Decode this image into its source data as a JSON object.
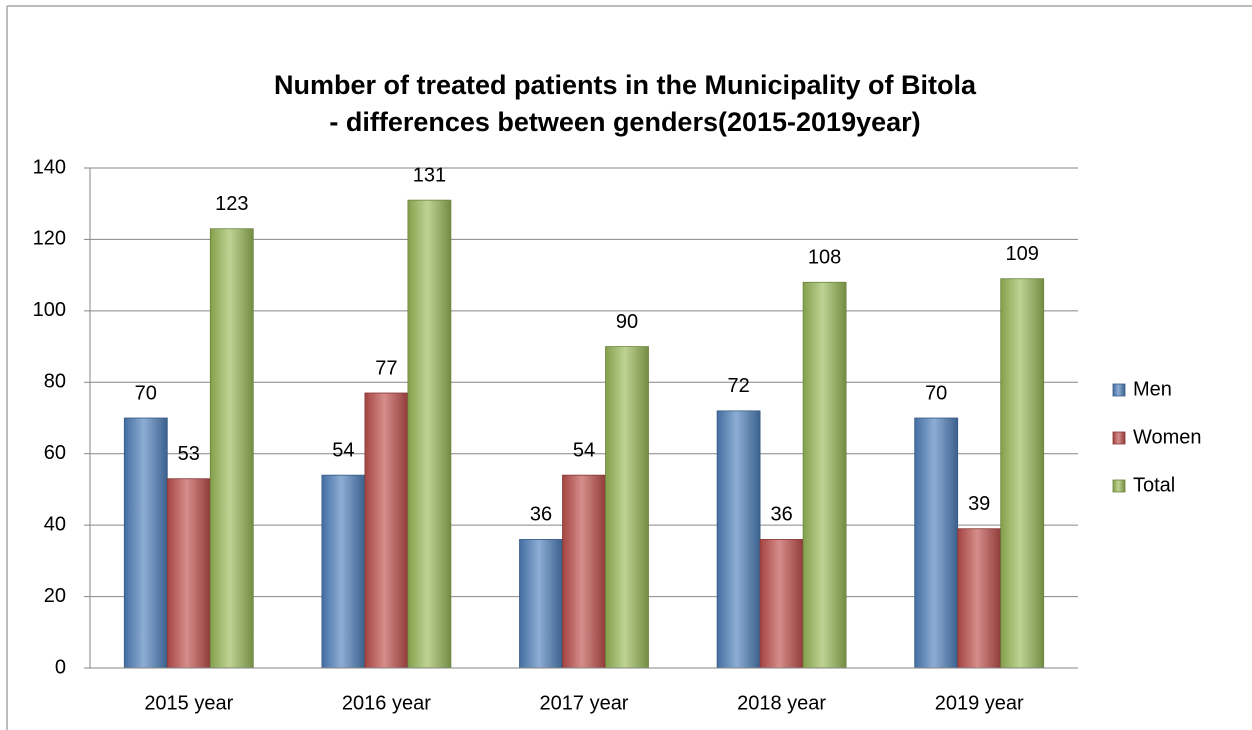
{
  "chart_data": {
    "type": "bar",
    "title": [
      "Number of treated patients in the Municipality of Bitola",
      "- differences between genders(2015-2019year)"
    ],
    "categories": [
      "2015 year",
      "2016 year",
      "2017 year",
      "2018 year",
      "2019 year"
    ],
    "series": [
      {
        "name": "Men",
        "color": "#4f81bd",
        "values": [
          70,
          54,
          36,
          72,
          70
        ]
      },
      {
        "name": "Women",
        "color": "#c0504d",
        "values": [
          53,
          77,
          54,
          36,
          39
        ]
      },
      {
        "name": "Total",
        "color": "#9bbb59",
        "values": [
          123,
          131,
          90,
          108,
          109
        ]
      }
    ],
    "ylim": [
      0,
      140
    ],
    "yticks": [
      0,
      20,
      40,
      60,
      80,
      100,
      120,
      140
    ],
    "grid": true,
    "legend": "right"
  }
}
